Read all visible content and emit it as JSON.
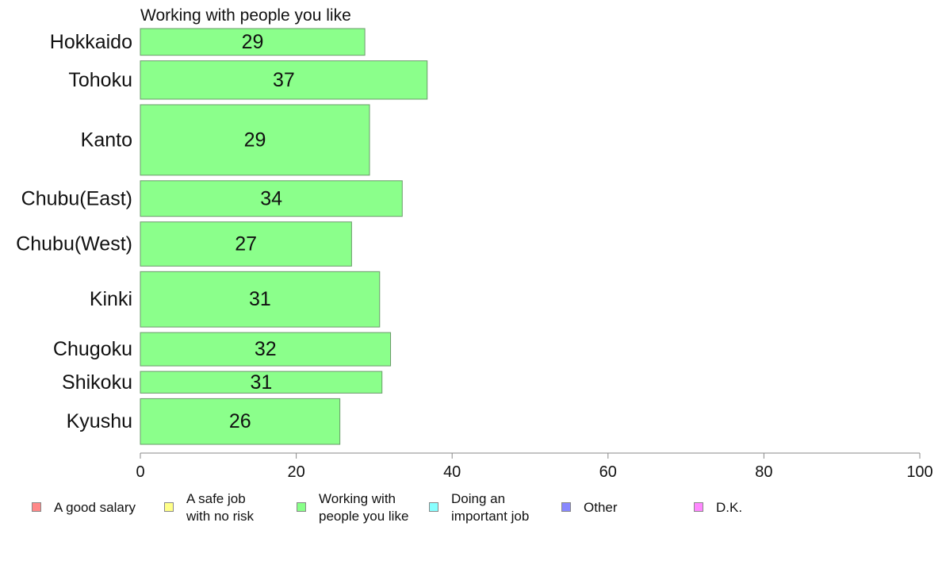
{
  "chart_data": {
    "type": "bar",
    "orientation": "horizontal",
    "title": "Working with people you like",
    "categories": [
      "Hokkaido",
      "Tohoku",
      "Kanto",
      "Chubu(East)",
      "Chubu(West)",
      "Kinki",
      "Chugoku",
      "Shikoku",
      "Kyushu"
    ],
    "values": [
      28.8,
      36.8,
      29.4,
      33.6,
      27.1,
      30.7,
      32.1,
      31.0,
      25.6
    ],
    "value_labels": [
      "29",
      "37",
      "29",
      "34",
      "27",
      "31",
      "32",
      "31",
      "26"
    ],
    "bar_weights": [
      0.69,
      0.99,
      1.82,
      0.92,
      1.14,
      1.43,
      0.86,
      0.56,
      1.18
    ],
    "xlim": [
      0,
      100
    ],
    "xticks": [
      "0",
      "20",
      "40",
      "60",
      "80",
      "100"
    ],
    "xtick_values": [
      0,
      20,
      40,
      60,
      80,
      100
    ],
    "grid": false,
    "bar_color": "#8bff8b",
    "bar_edge_color": "#6a9a6a",
    "legend": {
      "placement": "bottom",
      "entries": [
        {
          "label": "A good salary",
          "color": "#ff8888"
        },
        {
          "label": "A safe job\nwith no risk",
          "color": "#ffff88"
        },
        {
          "label": "Working with\npeople you like",
          "color": "#88ff88"
        },
        {
          "label": "Doing an\nimportant job",
          "color": "#88ffff"
        },
        {
          "label": "Other",
          "color": "#8888ff"
        },
        {
          "label": "D.K.",
          "color": "#ff88ff"
        }
      ]
    }
  }
}
